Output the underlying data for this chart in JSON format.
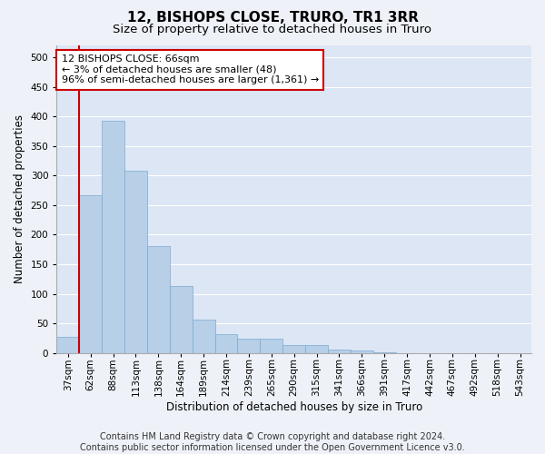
{
  "title": "12, BISHOPS CLOSE, TRURO, TR1 3RR",
  "subtitle": "Size of property relative to detached houses in Truro",
  "xlabel": "Distribution of detached houses by size in Truro",
  "ylabel": "Number of detached properties",
  "footer_line1": "Contains HM Land Registry data © Crown copyright and database right 2024.",
  "footer_line2": "Contains public sector information licensed under the Open Government Licence v3.0.",
  "categories": [
    "37sqm",
    "62sqm",
    "88sqm",
    "113sqm",
    "138sqm",
    "164sqm",
    "189sqm",
    "214sqm",
    "239sqm",
    "265sqm",
    "290sqm",
    "315sqm",
    "341sqm",
    "366sqm",
    "391sqm",
    "417sqm",
    "442sqm",
    "467sqm",
    "492sqm",
    "518sqm",
    "543sqm"
  ],
  "values": [
    28,
    267,
    392,
    308,
    180,
    113,
    57,
    32,
    24,
    24,
    13,
    13,
    6,
    4,
    1,
    0,
    0,
    0,
    0,
    0,
    0
  ],
  "bar_color": "#b8cfe8",
  "bar_edge_color": "#7aaad0",
  "vline_x": 0.5,
  "vline_color": "#cc0000",
  "annotation_text": "12 BISHOPS CLOSE: 66sqm\n← 3% of detached houses are smaller (48)\n96% of semi-detached houses are larger (1,361) →",
  "annotation_box_color": "#ffffff",
  "annotation_box_edge": "#cc0000",
  "ylim": [
    0,
    520
  ],
  "yticks": [
    0,
    50,
    100,
    150,
    200,
    250,
    300,
    350,
    400,
    450,
    500
  ],
  "bg_color": "#eef2f8",
  "plot_bg_color": "#dce6f5",
  "grid_color": "#ffffff",
  "title_fontsize": 11,
  "subtitle_fontsize": 9.5,
  "axis_label_fontsize": 8.5,
  "tick_fontsize": 7.5,
  "footer_fontsize": 7,
  "annotation_fontsize": 8
}
